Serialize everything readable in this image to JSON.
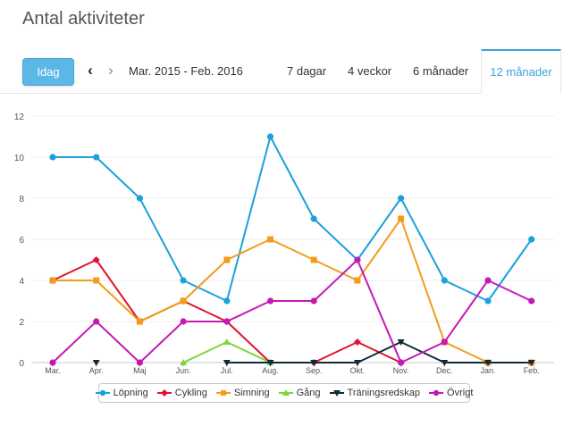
{
  "page": {
    "title": "Antal aktiviteter"
  },
  "toolbar": {
    "today_label": "Idag",
    "prev_icon": "‹",
    "next_icon": "›",
    "range_label": "Mar. 2015 - Feb. 2016",
    "tabs": [
      {
        "label": "7 dagar",
        "active": false
      },
      {
        "label": "4 veckor",
        "active": false
      },
      {
        "label": "6 månader",
        "active": false
      },
      {
        "label": "12 månader",
        "active": true
      }
    ],
    "accent_color": "#3aa3d8",
    "button_color": "#5bb8e6"
  },
  "chart_data": {
    "type": "line",
    "categories": [
      "Mar.",
      "Apr.",
      "Maj",
      "Jun.",
      "Jul.",
      "Aug.",
      "Sep.",
      "Okt.",
      "Nov.",
      "Dec.",
      "Jan.",
      "Feb."
    ],
    "ylim": [
      0,
      12
    ],
    "yticks": [
      "0",
      "2",
      "4",
      "6",
      "8",
      "10",
      "12"
    ],
    "grid": "horizontal",
    "legend_position": "bottom",
    "series": [
      {
        "name": "Löpning",
        "color": "#1aa1dc",
        "marker": "circle",
        "values": [
          10,
          10,
          8,
          4,
          3,
          11,
          7,
          5,
          8,
          4,
          3,
          6
        ]
      },
      {
        "name": "Cykling",
        "color": "#e2122f",
        "marker": "diamond",
        "values": [
          4,
          5,
          2,
          3,
          2,
          0,
          0,
          1,
          0,
          null,
          null,
          null
        ]
      },
      {
        "name": "Simning",
        "color": "#f39c1b",
        "marker": "square",
        "values": [
          4,
          4,
          2,
          3,
          5,
          6,
          5,
          4,
          7,
          1,
          0,
          0
        ]
      },
      {
        "name": "Gång",
        "color": "#7ed63a",
        "marker": "triangle",
        "values": [
          null,
          null,
          null,
          0,
          1,
          0,
          null,
          null,
          null,
          null,
          null,
          null
        ]
      },
      {
        "name": "Träningsredskap",
        "color": "#102a3a",
        "marker": "triangle-down",
        "values": [
          null,
          0,
          null,
          null,
          0,
          0,
          0,
          0,
          1,
          0,
          0,
          0
        ]
      },
      {
        "name": "Övrigt",
        "color": "#c718b4",
        "marker": "circle",
        "values": [
          0,
          2,
          0,
          2,
          2,
          3,
          3,
          5,
          0,
          1,
          4,
          3
        ]
      }
    ]
  }
}
